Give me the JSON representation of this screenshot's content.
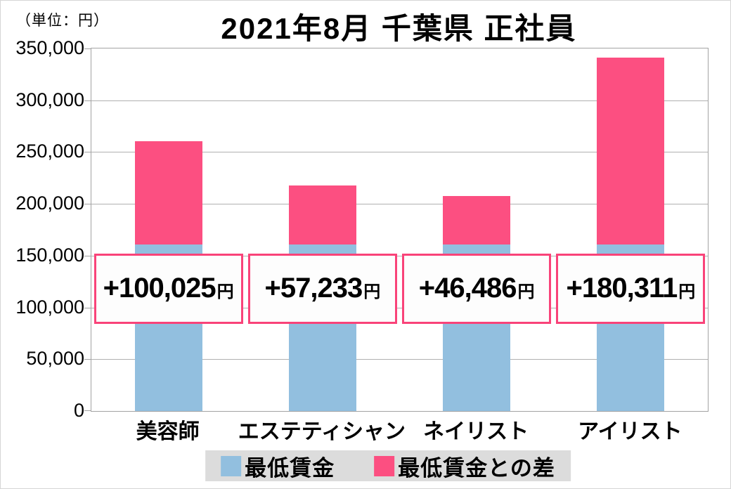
{
  "page": {
    "unit_label": "（単位：円）",
    "title": "2021年8月 千葉県 正社員"
  },
  "colors": {
    "min_wage_blue": "#92bfdf",
    "diff_pink": "#fc4f81",
    "label_box_border": "#f94379",
    "label_box_bg": "#fdfdfd",
    "gridline": "#b0b0b0",
    "plot_border": "#a3a3a3",
    "legend_bg": "#dcdcdc",
    "text": "#000000"
  },
  "chart_data": {
    "type": "bar",
    "stacked": true,
    "title": "2021年8月 千葉県 正社員",
    "unit": "円",
    "categories": [
      "美容師",
      "エステティシャン",
      "ネイリスト",
      "アイリスト"
    ],
    "series": [
      {
        "name": "最低賃金",
        "role": "base",
        "color_key": "min_wage_blue",
        "values": [
          160765,
          160765,
          160765,
          160765
        ]
      },
      {
        "name": "最低賃金との差",
        "role": "diff",
        "color_key": "diff_pink",
        "values": [
          100025,
          57233,
          46486,
          180311
        ]
      }
    ],
    "totals": [
      260790,
      217998,
      207251,
      341076
    ],
    "bar_value_labels": [
      {
        "text": "+100,025",
        "suffix": "円"
      },
      {
        "text": "+57,233",
        "suffix": "円"
      },
      {
        "text": "+46,486",
        "suffix": "円"
      },
      {
        "text": "+180,311",
        "suffix": "円"
      }
    ],
    "y_axis": {
      "min": 0,
      "max": 350000,
      "step": 50000,
      "tick_labels": [
        "350,000",
        "300,000",
        "250,000",
        "200,000",
        "150,000",
        "100,000",
        "50,000",
        "0"
      ]
    },
    "grid": true,
    "legend": {
      "position": "bottom",
      "items": [
        {
          "label": "最低賃金",
          "color_key": "min_wage_blue"
        },
        {
          "label": "最低賃金との差",
          "color_key": "diff_pink"
        }
      ]
    }
  }
}
